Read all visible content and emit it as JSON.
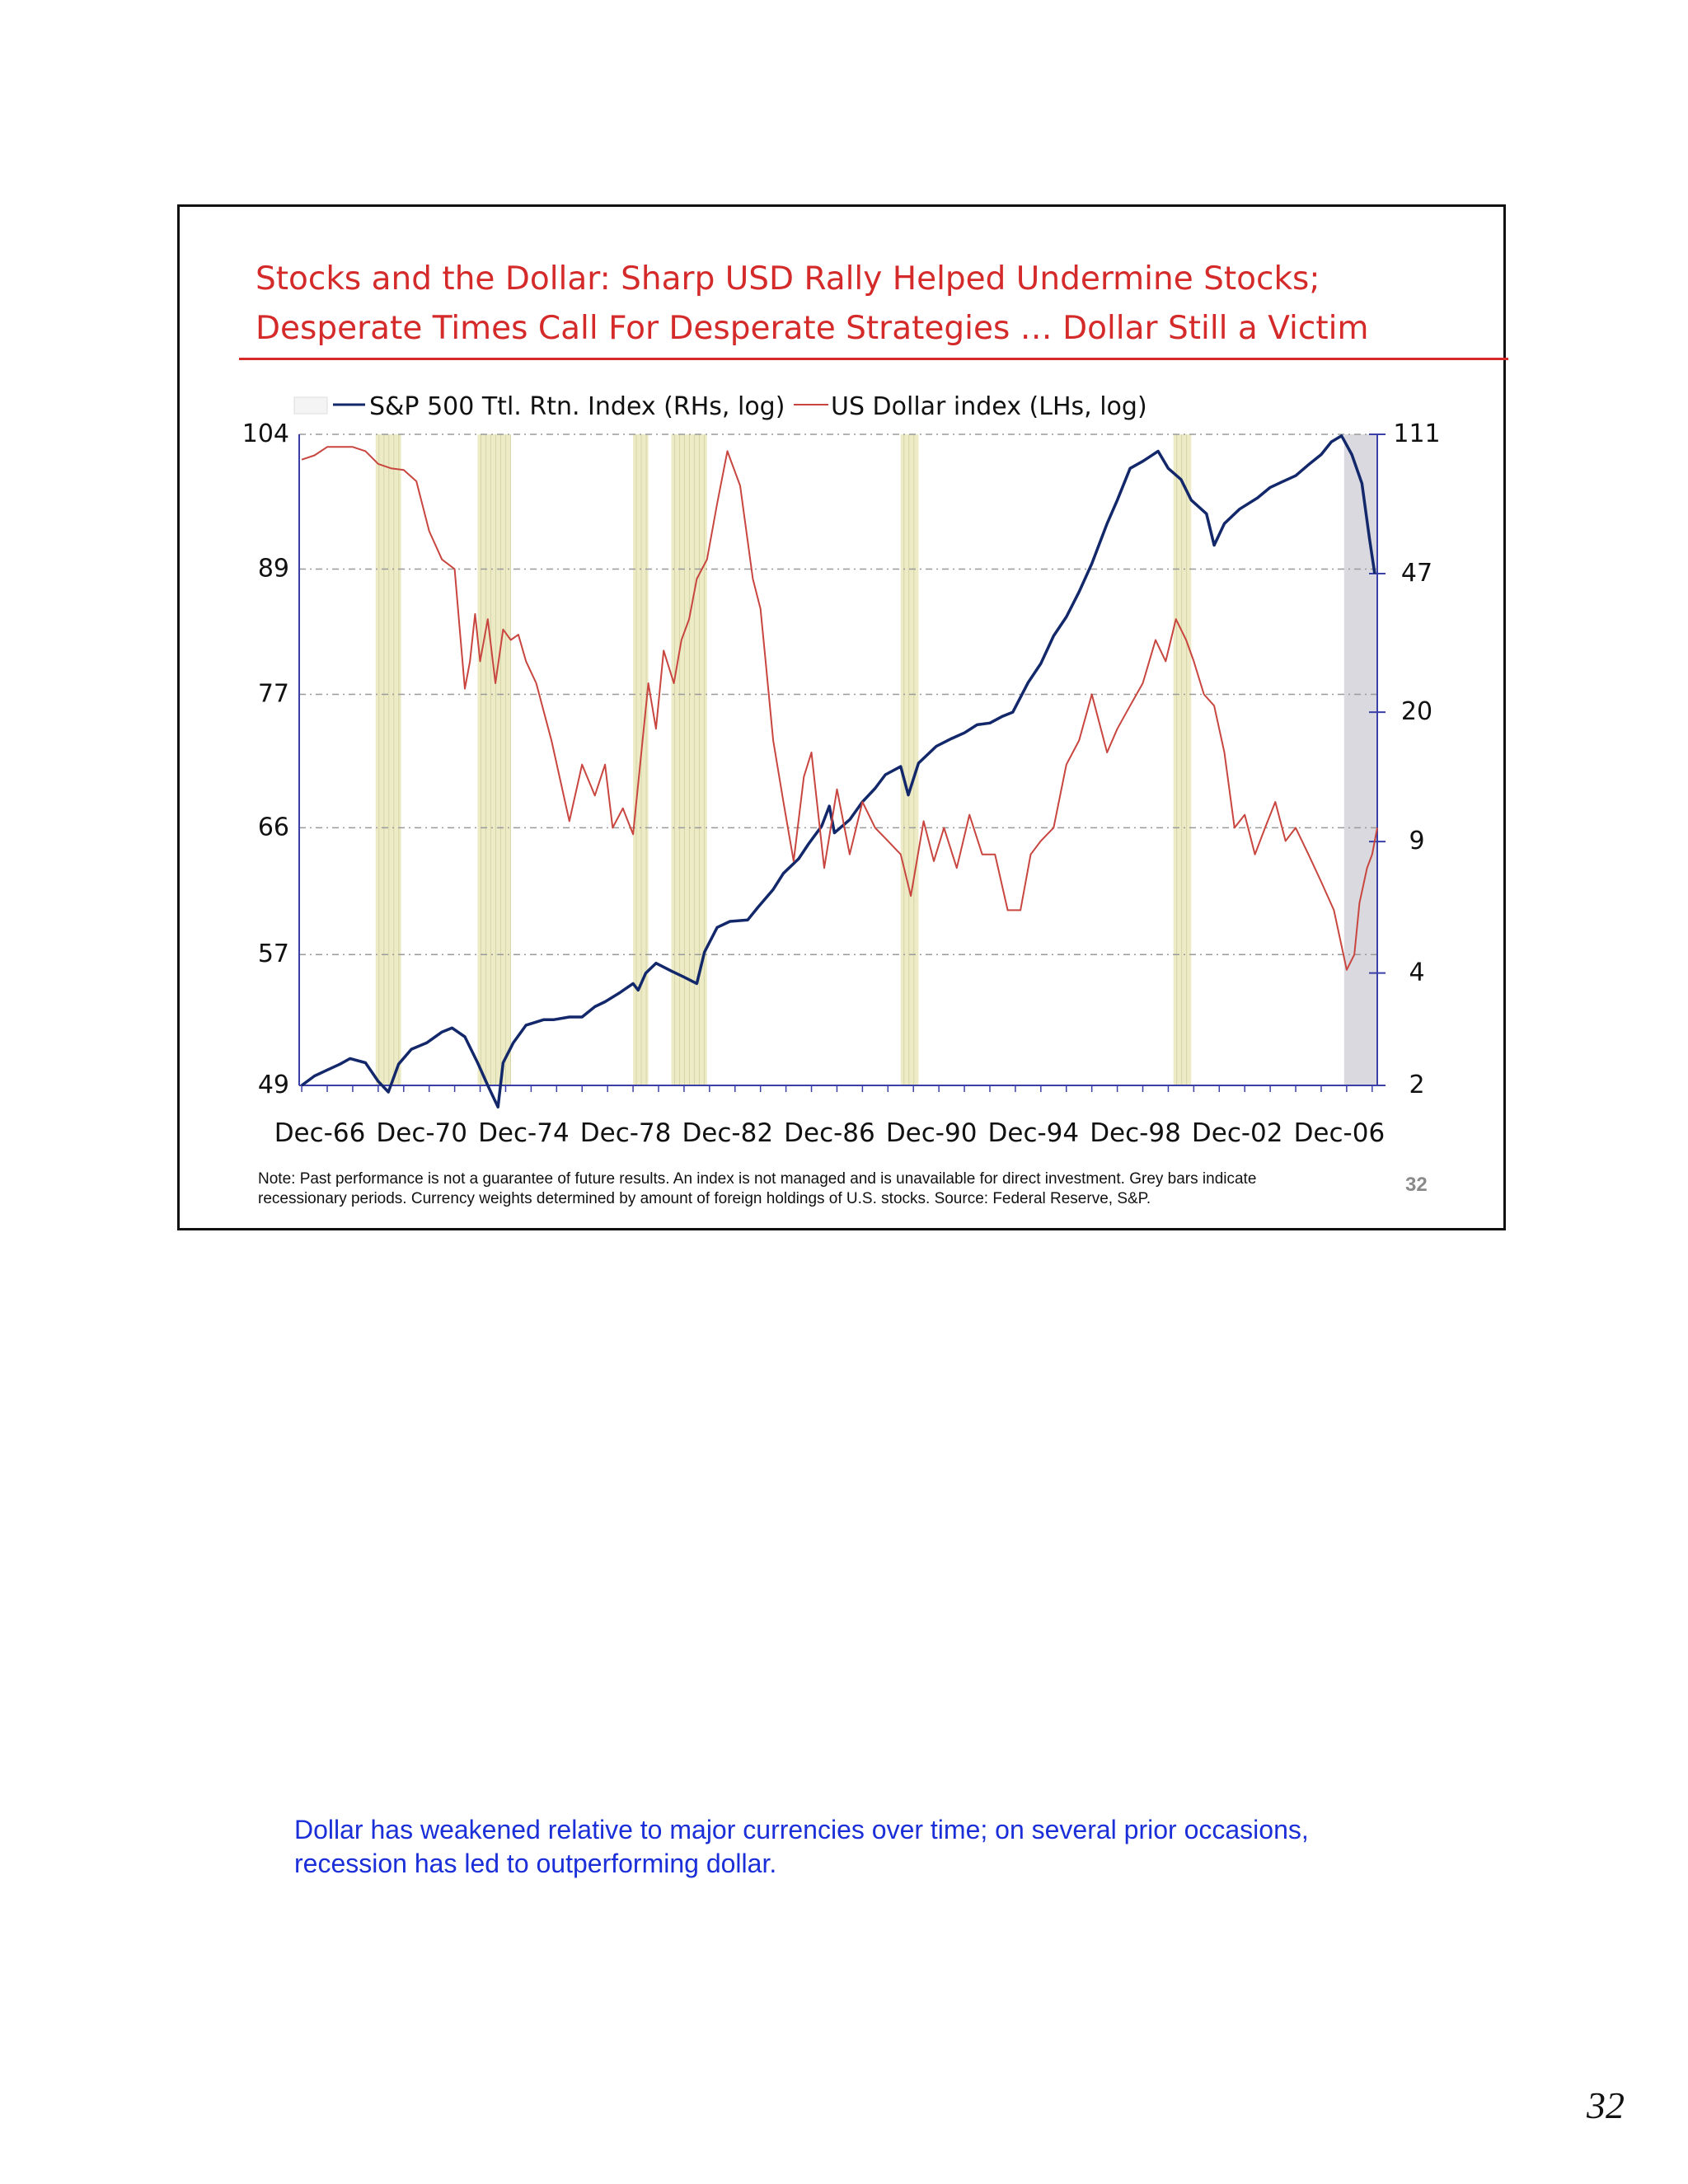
{
  "slide": {
    "title_line1": "Stocks and the Dollar: Sharp USD Rally Helped Undermine Stocks;",
    "title_line2": "Desperate Times Call For Desperate Strategies … Dollar Still a Victim",
    "note_line1": "Note: Past performance is not a guarantee of future results.  An index is not managed and is unavailable for direct investment. Grey bars indicate",
    "note_line2": "recessionary periods. Currency weights determined by amount of foreign holdings of U.S. stocks. Source: Federal Reserve, S&P.",
    "slide_number": "32"
  },
  "caption": {
    "line1": "Dollar has weakened relative to major currencies over time; on several prior occasions,",
    "line2": "recession has led to outperforming dollar."
  },
  "page_number": "32",
  "colors": {
    "title_red": "#d42a2a",
    "sp500_navy": "#13286b",
    "dollar_red": "#c8463f",
    "recession_band": "#ecebc6",
    "current_recession_band": "#d9d9df",
    "caption_blue": "#1a2fd8"
  },
  "chart_data": {
    "type": "line",
    "legend": [
      "S&P 500 Ttl. Rtn. Index (RHs, log)",
      "US Dollar index (LHs, log)"
    ],
    "legend_placement": "top-left",
    "x_tick_labels": [
      "Dec-66",
      "Dec-70",
      "Dec-74",
      "Dec-78",
      "Dec-82",
      "Dec-86",
      "Dec-90",
      "Dec-94",
      "Dec-98",
      "Dec-02",
      "Dec-06"
    ],
    "x_range": [
      1966.9,
      2009.2
    ],
    "left_axis": {
      "scale": "log",
      "ticks": [
        104,
        89,
        77,
        66,
        57,
        49
      ],
      "range": [
        49,
        104
      ]
    },
    "right_axis": {
      "scale": "log",
      "ticks": [
        111,
        47,
        20,
        9,
        4,
        2
      ],
      "range": [
        2,
        111
      ]
    },
    "grid": "horizontal dashed",
    "recessions": [
      [
        1969.9,
        1970.9
      ],
      [
        1973.9,
        1975.2
      ],
      [
        1980.0,
        1980.6
      ],
      [
        1981.5,
        1982.9
      ],
      [
        1990.5,
        1991.2
      ],
      [
        2001.2,
        2001.9
      ]
    ],
    "current_recession": [
      2007.9,
      2009.2
    ],
    "series": [
      {
        "name": "S&P 500 Ttl. Rtn. Index (RHs, log)",
        "axis": "right",
        "x": [
          1967.0,
          1967.5,
          1968.0,
          1968.5,
          1968.9,
          1969.5,
          1970.0,
          1970.4,
          1970.8,
          1971.3,
          1971.9,
          1972.5,
          1972.9,
          1973.4,
          1973.9,
          1974.3,
          1974.7,
          1974.9,
          1975.3,
          1975.8,
          1976.5,
          1976.9,
          1977.5,
          1978.0,
          1978.5,
          1978.9,
          1979.5,
          1980.0,
          1980.2,
          1980.5,
          1980.9,
          1981.5,
          1982.0,
          1982.5,
          1982.8,
          1983.3,
          1983.8,
          1984.5,
          1984.9,
          1985.5,
          1985.9,
          1986.5,
          1986.9,
          1987.4,
          1987.7,
          1987.9,
          1988.5,
          1989.0,
          1989.5,
          1989.9,
          1990.5,
          1990.8,
          1991.2,
          1991.9,
          1992.5,
          1993.0,
          1993.5,
          1994.0,
          1994.5,
          1994.9,
          1995.5,
          1996.0,
          1996.5,
          1997.0,
          1997.5,
          1998.0,
          1998.6,
          1999.0,
          1999.5,
          2000.0,
          2000.6,
          2001.0,
          2001.5,
          2001.9,
          2002.5,
          2002.8,
          2003.2,
          2003.8,
          2004.5,
          2005.0,
          2005.5,
          2006.0,
          2006.5,
          2007.0,
          2007.4,
          2007.8,
          2008.2,
          2008.6,
          2008.9,
          2009.1
        ],
        "values": [
          2.0,
          2.12,
          2.2,
          2.28,
          2.36,
          2.3,
          2.05,
          1.92,
          2.28,
          2.5,
          2.6,
          2.78,
          2.85,
          2.7,
          2.3,
          2.0,
          1.75,
          2.3,
          2.6,
          2.9,
          3.0,
          3.0,
          3.05,
          3.05,
          3.25,
          3.35,
          3.55,
          3.75,
          3.6,
          4.0,
          4.25,
          4.05,
          3.9,
          3.75,
          4.55,
          5.3,
          5.5,
          5.55,
          6.0,
          6.7,
          7.4,
          8.1,
          8.9,
          9.9,
          11.2,
          9.5,
          10.3,
          11.5,
          12.5,
          13.6,
          14.3,
          12.0,
          14.6,
          16.2,
          17.0,
          17.6,
          18.5,
          18.7,
          19.5,
          20.0,
          24.0,
          27.0,
          32.0,
          36.0,
          42.0,
          50.0,
          64.0,
          74.0,
          90.0,
          94.0,
          100.0,
          90.0,
          84.0,
          74.0,
          68.0,
          56.0,
          64.0,
          70.0,
          75.0,
          80.0,
          83.0,
          86.0,
          92.0,
          98.0,
          106.0,
          110.0,
          98.0,
          82.0,
          58.0,
          47.0
        ]
      },
      {
        "name": "US Dollar index (LHs, log)",
        "axis": "left",
        "x": [
          1967.0,
          1967.5,
          1968.0,
          1968.5,
          1969.0,
          1969.5,
          1970.0,
          1970.5,
          1971.0,
          1971.5,
          1972.0,
          1972.5,
          1973.0,
          1973.2,
          1973.4,
          1973.6,
          1973.8,
          1974.0,
          1974.3,
          1974.6,
          1974.9,
          1975.2,
          1975.5,
          1975.8,
          1976.2,
          1976.8,
          1977.5,
          1978.0,
          1978.5,
          1978.9,
          1979.2,
          1979.6,
          1980.0,
          1980.3,
          1980.6,
          1980.9,
          1981.2,
          1981.6,
          1981.9,
          1982.2,
          1982.5,
          1982.9,
          1983.3,
          1983.7,
          1984.2,
          1984.7,
          1985.0,
          1985.2,
          1985.5,
          1985.9,
          1986.3,
          1986.7,
          1987.0,
          1987.5,
          1988.0,
          1988.5,
          1989.0,
          1989.5,
          1990.0,
          1990.5,
          1990.9,
          1991.4,
          1991.8,
          1992.2,
          1992.7,
          1993.2,
          1993.7,
          1994.2,
          1994.7,
          1995.2,
          1995.6,
          1996.0,
          1996.5,
          1997.0,
          1997.5,
          1998.0,
          1998.6,
          1999.0,
          1999.5,
          2000.0,
          2000.5,
          2000.9,
          2001.3,
          2001.7,
          2002.0,
          2002.4,
          2002.8,
          2003.2,
          2003.6,
          2004.0,
          2004.4,
          2004.8,
          2005.2,
          2005.6,
          2006.0,
          2006.5,
          2007.0,
          2007.5,
          2008.0,
          2008.3,
          2008.5,
          2008.8,
          2009.0,
          2009.2
        ],
        "values": [
          101.0,
          101.5,
          102.5,
          102.5,
          102.5,
          102.0,
          100.5,
          100.0,
          99.8,
          98.5,
          93.0,
          90.0,
          89.0,
          83.0,
          77.5,
          80.0,
          84.5,
          80.0,
          84.0,
          78.0,
          83.0,
          82.0,
          82.5,
          80.0,
          78.0,
          73.0,
          66.5,
          71.0,
          68.5,
          71.0,
          66.0,
          67.5,
          65.5,
          71.5,
          78.0,
          74.0,
          81.0,
          78.0,
          82.0,
          84.0,
          88.0,
          90.0,
          96.0,
          102.0,
          98.0,
          88.0,
          85.0,
          80.0,
          73.0,
          68.0,
          63.5,
          70.0,
          72.0,
          63.0,
          69.0,
          64.0,
          68.0,
          66.0,
          65.0,
          64.0,
          61.0,
          66.5,
          63.5,
          66.0,
          63.0,
          67.0,
          64.0,
          64.0,
          60.0,
          60.0,
          64.0,
          65.0,
          66.0,
          71.0,
          73.0,
          77.0,
          72.0,
          74.0,
          76.0,
          78.0,
          82.0,
          80.0,
          84.0,
          82.0,
          80.0,
          77.0,
          76.0,
          72.0,
          66.0,
          67.0,
          64.0,
          66.0,
          68.0,
          65.0,
          66.0,
          64.0,
          62.0,
          60.0,
          56.0,
          57.0,
          60.5,
          63.0,
          64.0,
          66.0
        ]
      }
    ]
  }
}
